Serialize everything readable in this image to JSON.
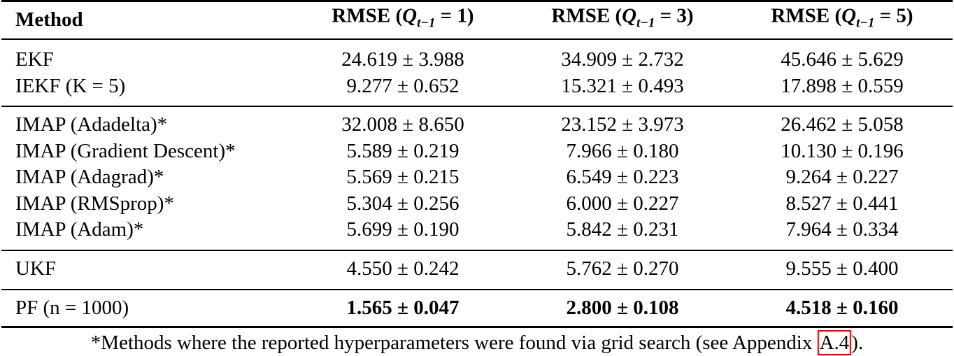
{
  "table": {
    "header": [
      {
        "text": "Method"
      },
      {
        "prefix": "RMSE (",
        "var": "Q",
        "sub": "t−1",
        "rest": " = 1)"
      },
      {
        "prefix": "RMSE (",
        "var": "Q",
        "sub": "t−1",
        "rest": " = 3)"
      },
      {
        "prefix": "RMSE (",
        "var": "Q",
        "sub": "t−1",
        "rest": " = 5)"
      }
    ],
    "groups": [
      [
        {
          "method": "EKF",
          "cells": [
            "24.619 ± 3.988",
            "34.909 ± 2.732",
            "45.646 ± 5.629"
          ]
        },
        {
          "method": "IEKF (K = 5)",
          "cells": [
            "9.277 ± 0.652",
            "15.321 ± 0.493",
            "17.898 ± 0.559"
          ]
        }
      ],
      [
        {
          "method": "IMAP (Adadelta)*",
          "cells": [
            "32.008 ± 8.650",
            "23.152 ± 3.973",
            "26.462 ± 5.058"
          ]
        },
        {
          "method": "IMAP (Gradient Descent)*",
          "cells": [
            "5.589 ± 0.219",
            "7.966 ± 0.180",
            "10.130 ± 0.196"
          ]
        },
        {
          "method": "IMAP (Adagrad)*",
          "cells": [
            "5.569 ± 0.215",
            "6.549 ± 0.223",
            "9.264 ± 0.227"
          ]
        },
        {
          "method": "IMAP (RMSprop)*",
          "cells": [
            "5.304 ± 0.256",
            "6.000 ± 0.227",
            "8.527 ± 0.441"
          ]
        },
        {
          "method": "IMAP (Adam)*",
          "cells": [
            "5.699 ± 0.190",
            "5.842 ± 0.231",
            "7.964 ± 0.334"
          ]
        }
      ],
      [
        {
          "method": "UKF",
          "cells": [
            "4.550 ± 0.242",
            "5.762 ± 0.270",
            "9.555 ± 0.400"
          ]
        }
      ],
      [
        {
          "method": "PF (n = 1000)",
          "cells": [
            "1.565 ± 0.047",
            "2.800 ± 0.108",
            "4.518 ± 0.160"
          ]
        }
      ]
    ],
    "footnote": {
      "text": "*Methods where the reported hyperparameters were found via grid search (see Appendix ",
      "link": "A.4",
      "end": ")."
    }
  }
}
